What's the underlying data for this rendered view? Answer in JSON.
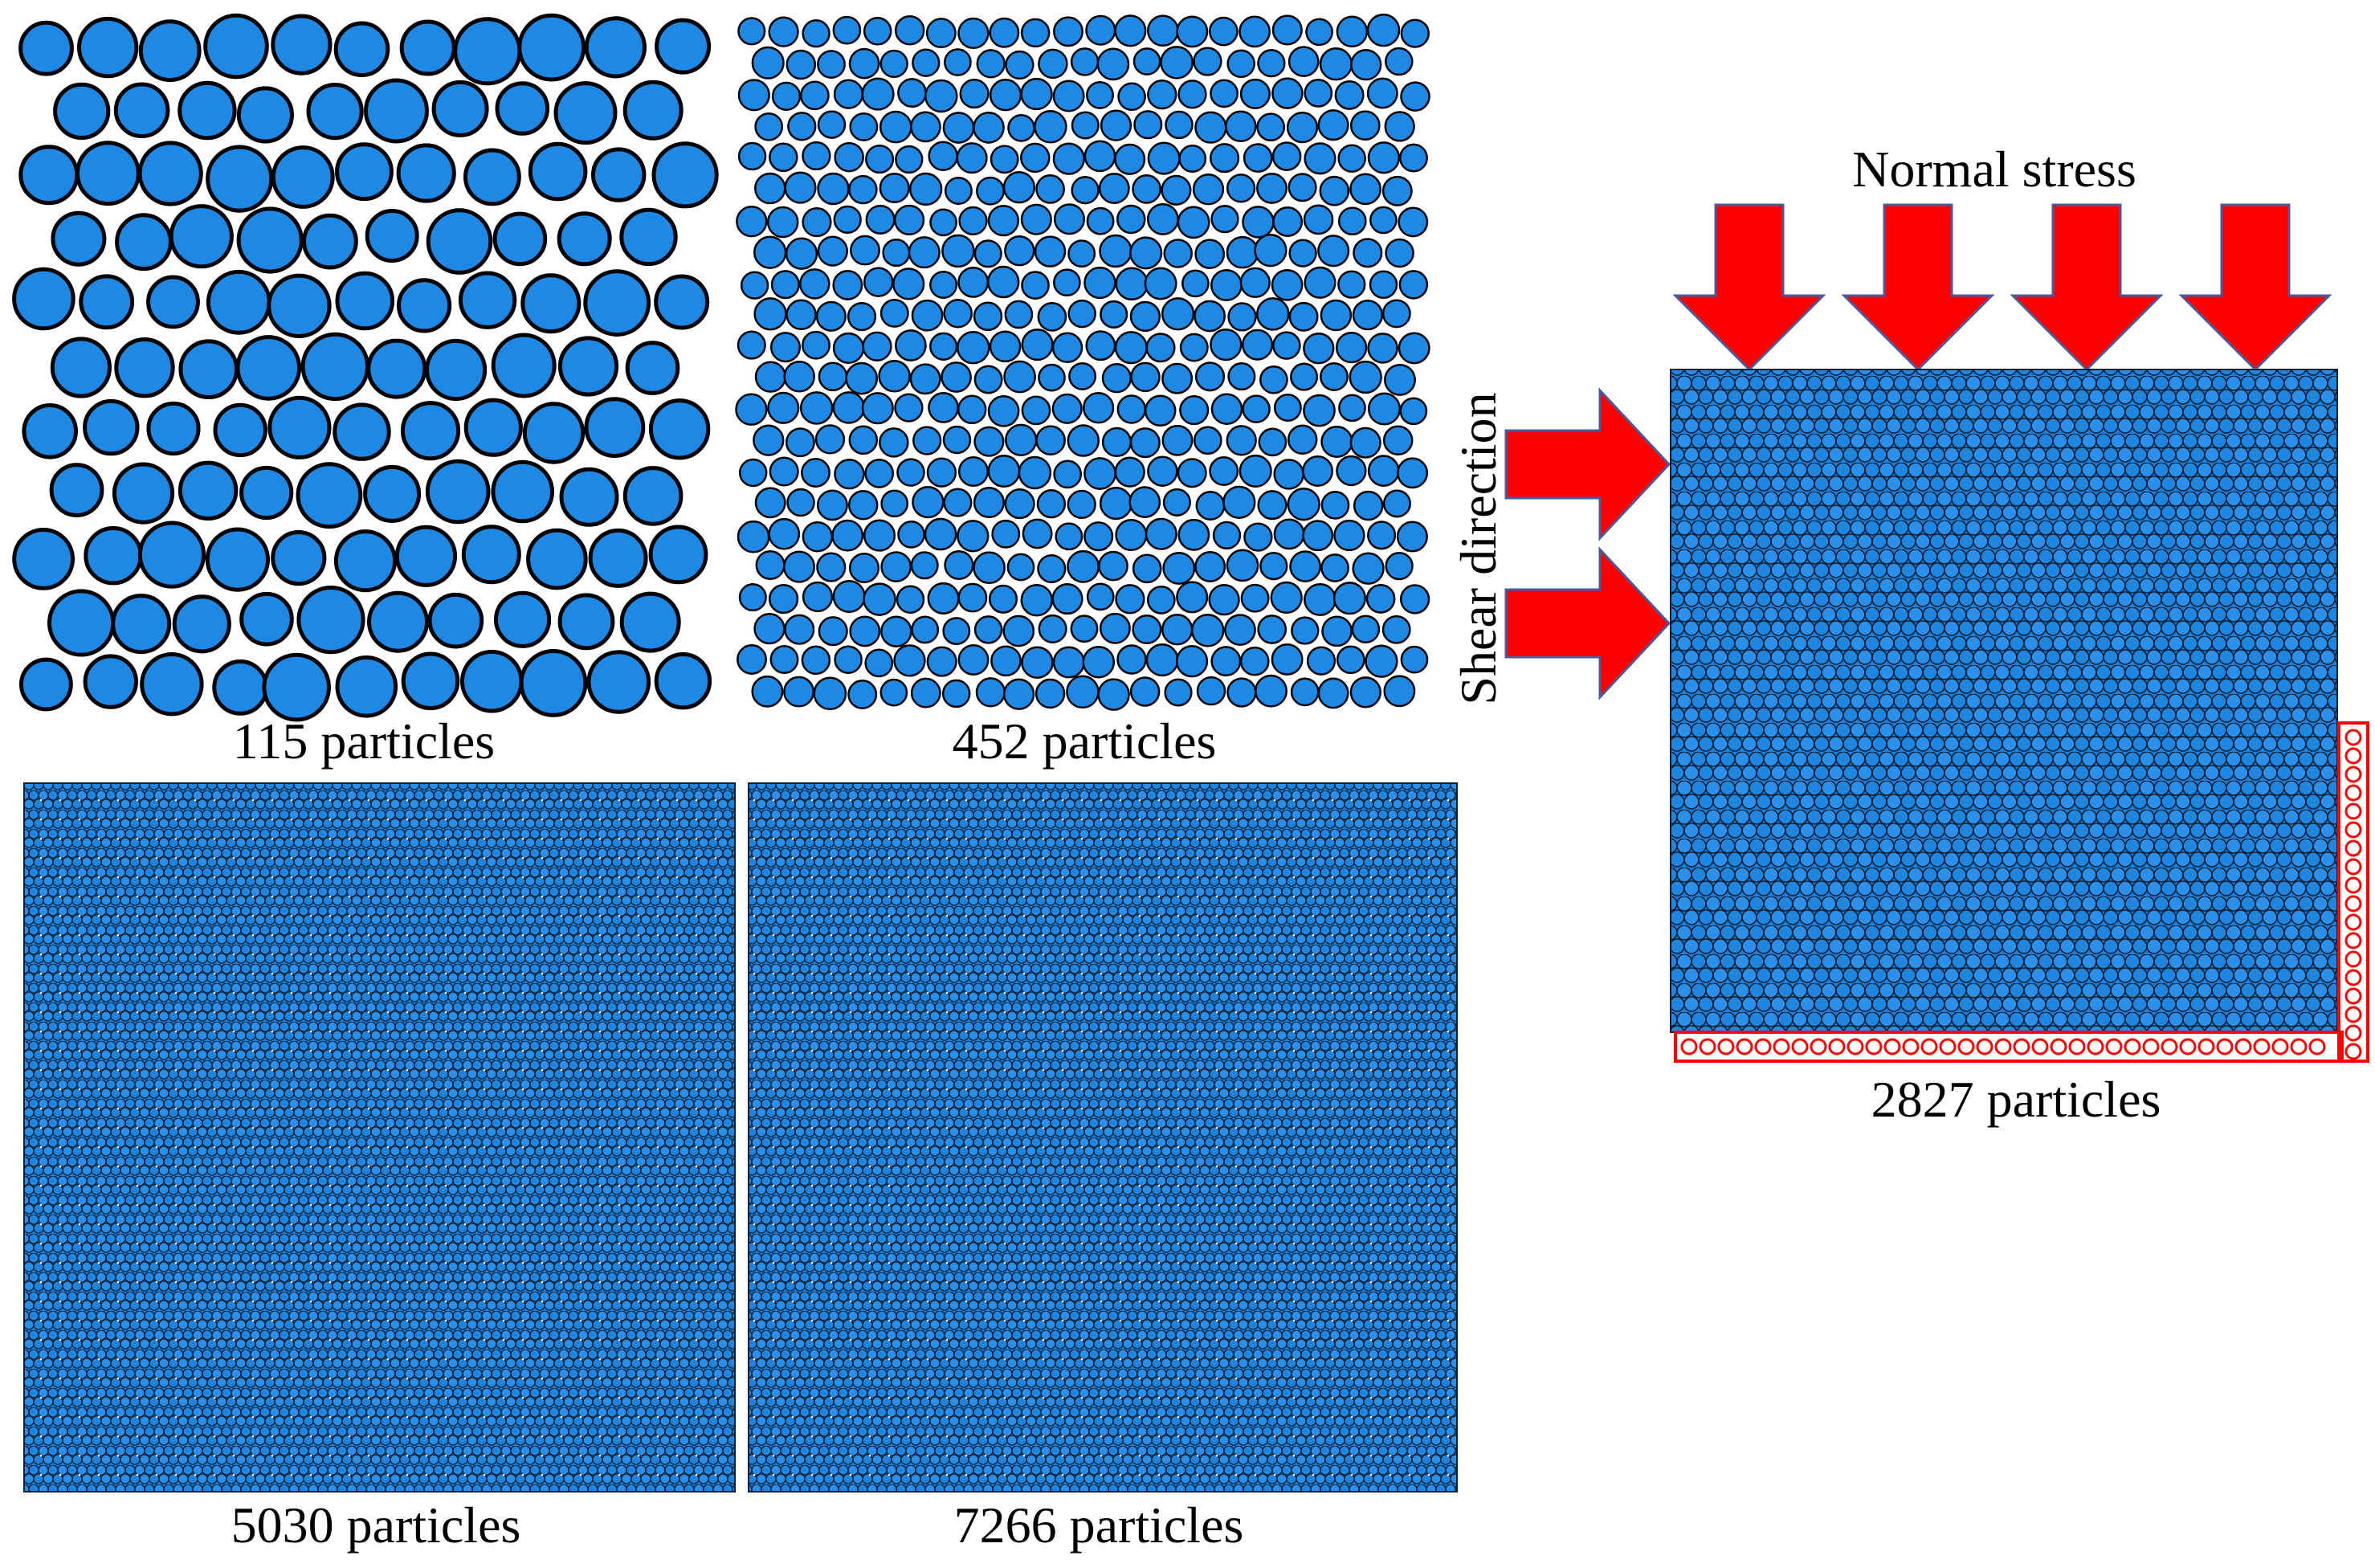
{
  "panels": [
    {
      "id": "p115",
      "caption": "115 particles"
    },
    {
      "id": "p452",
      "caption": "452 particles"
    },
    {
      "id": "p5030",
      "caption": "5030 particles"
    },
    {
      "id": "p7266",
      "caption": "7266 particles"
    },
    {
      "id": "p2827",
      "caption": "2827 particles"
    }
  ],
  "shear_box": {
    "normal_stress_label": "Normal stress",
    "shear_direction_label": "Shear direction",
    "normal_arrow_count": 4,
    "shear_arrow_count": 2
  },
  "colors": {
    "particle_fill": "#1E88E5",
    "particle_outline": "#000000",
    "arrow_fill": "#FF0000",
    "arrow_outline": "#4A5A9A",
    "boundary": "#FF0000"
  }
}
